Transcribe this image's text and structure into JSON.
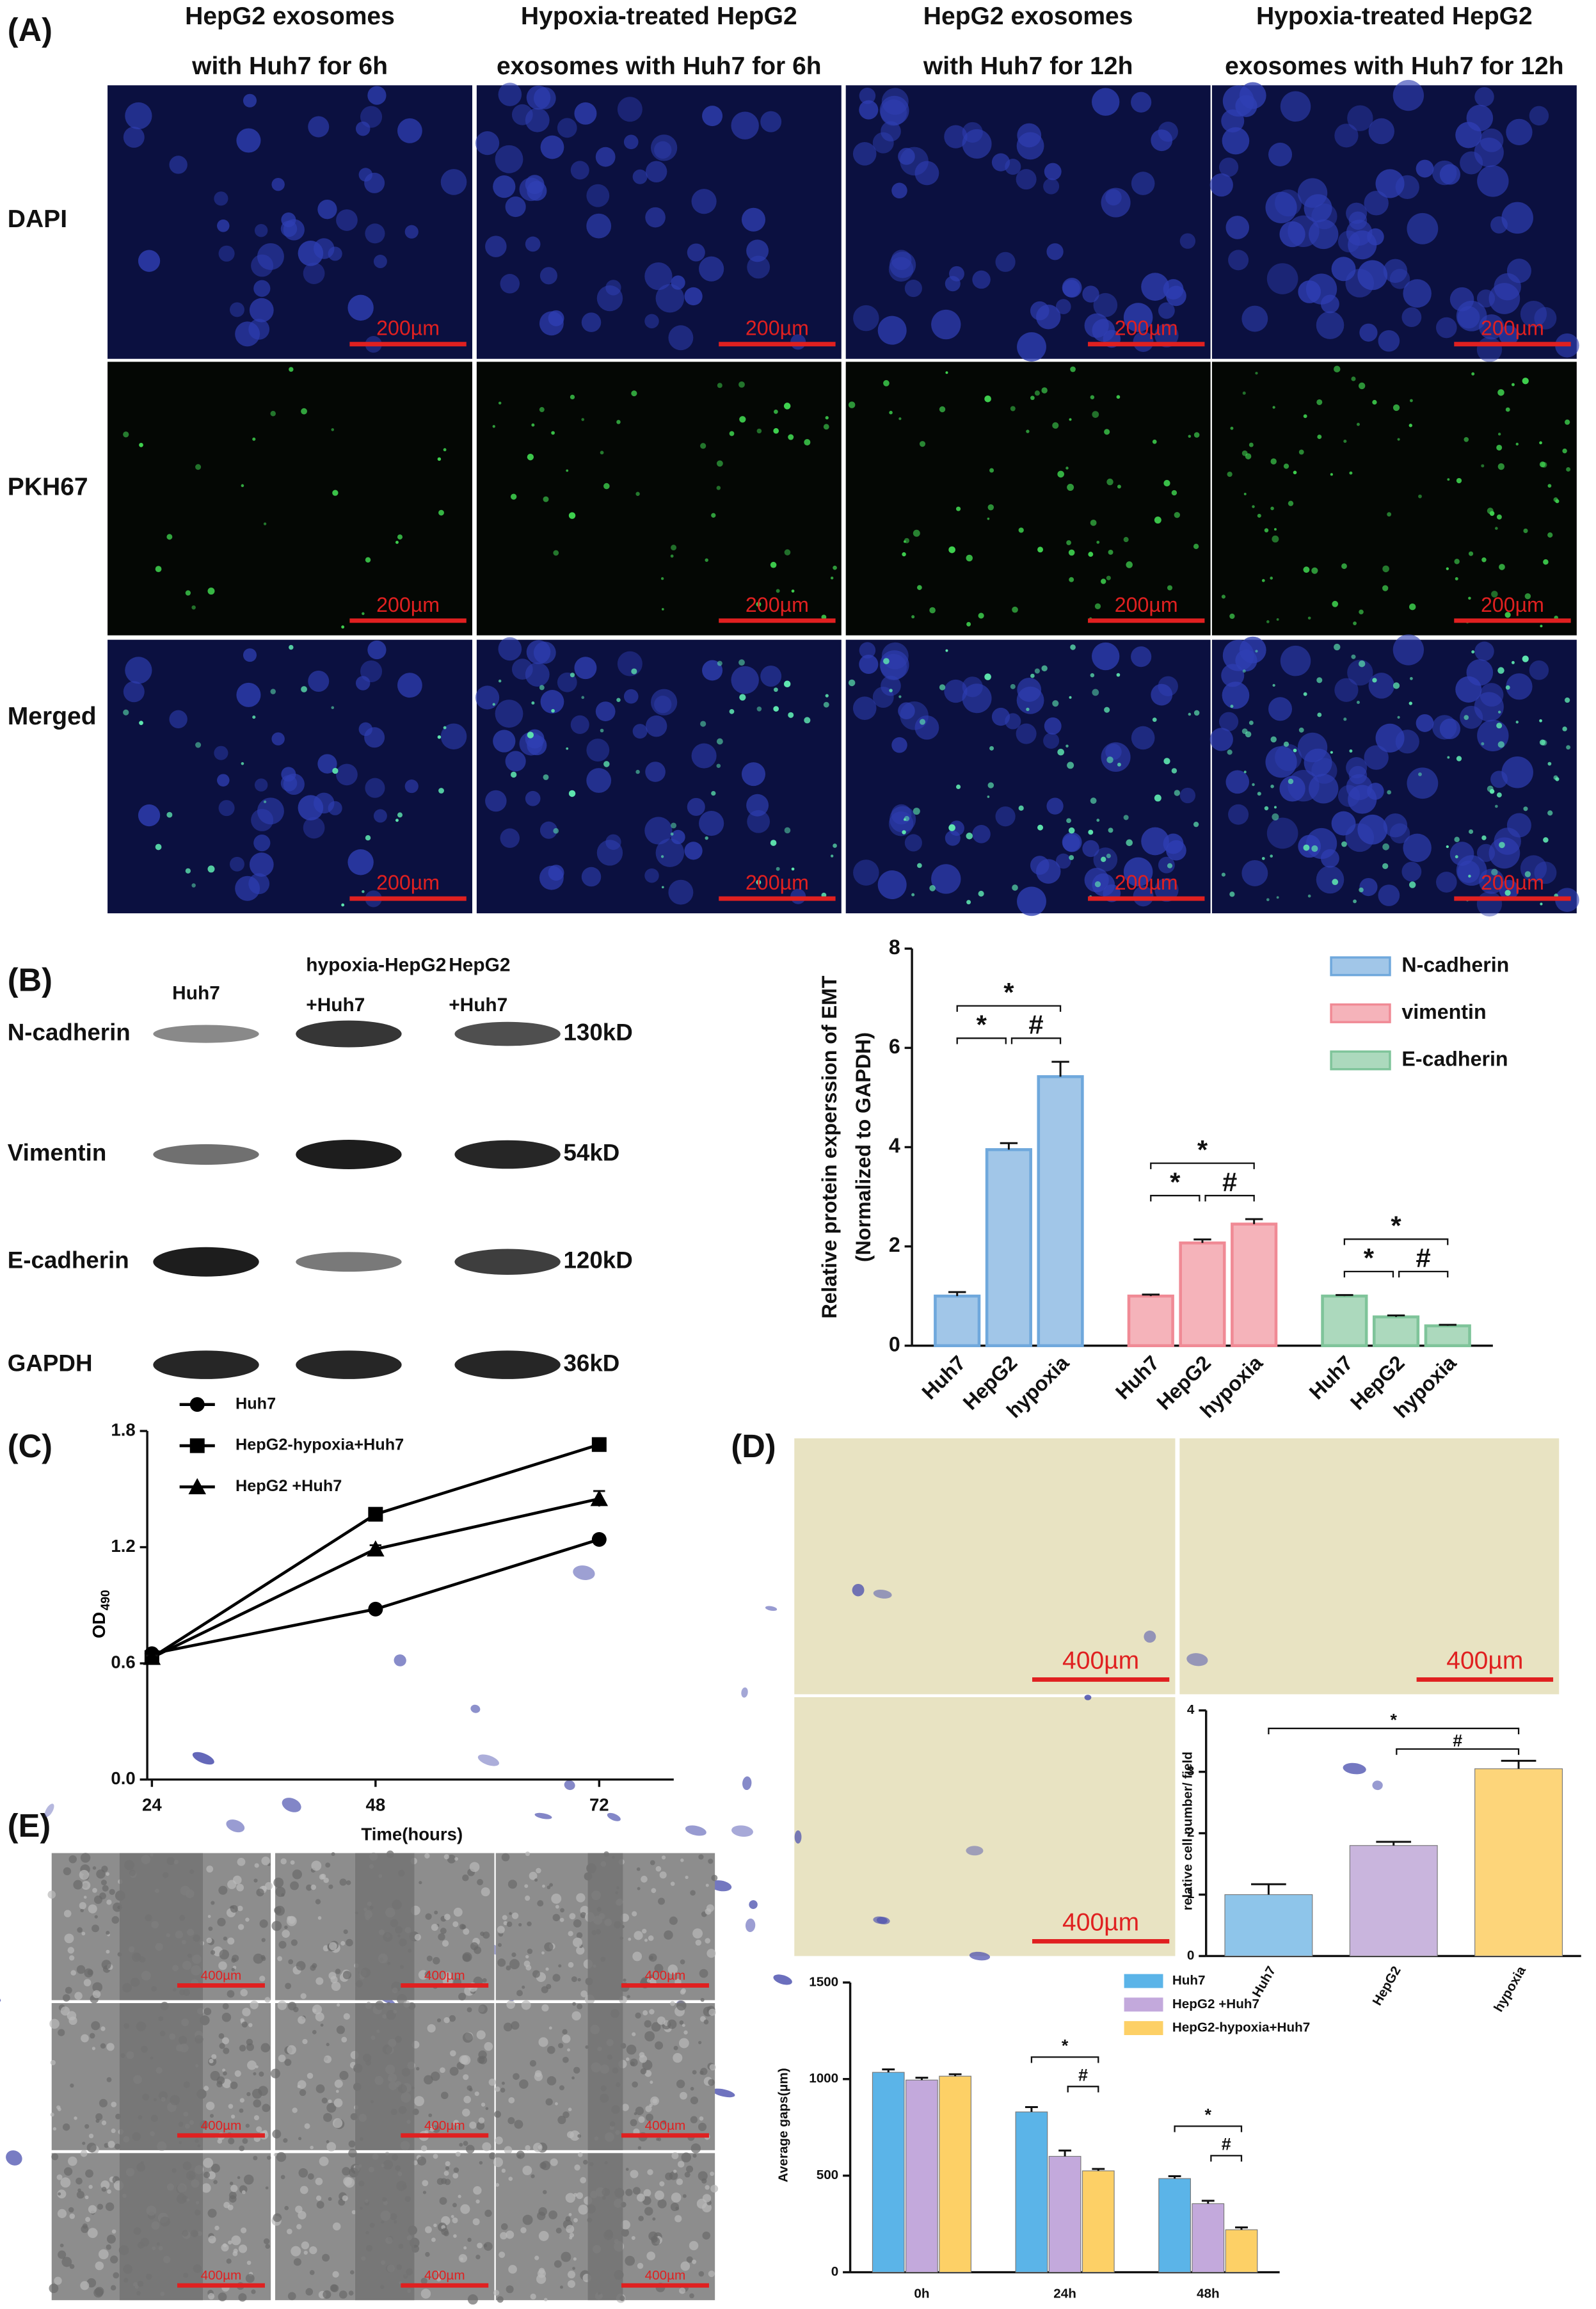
{
  "panels": {
    "A": {
      "label": "(A)",
      "columns": [
        [
          "HepG2 exosomes",
          "with Huh7 for 6h"
        ],
        [
          "Hypoxia-treated HepG2",
          "exosomes with Huh7 for 6h"
        ],
        [
          "HepG2 exosomes",
          "with Huh7 for 12h"
        ],
        [
          "Hypoxia-treated HepG2",
          "exosomes with Huh7 for 12h"
        ]
      ],
      "rows": [
        "DAPI",
        "PKH67",
        "Merged"
      ],
      "scale_bar": "200µm"
    },
    "B": {
      "label": "(B)",
      "lanes": [
        [
          "Huh7"
        ],
        [
          "hypoxia-HepG2",
          "+Huh7"
        ],
        [
          "HepG2",
          "+Huh7"
        ]
      ],
      "proteins": [
        "N-cadherin",
        "Vimentin",
        "E-cadherin",
        "GAPDH"
      ],
      "sizes": [
        "130kD",
        "54kD",
        "120kD",
        "36kD"
      ]
    },
    "C": {
      "label": "(C)"
    },
    "D": {
      "label": "(D)",
      "scale_bar": "400µm"
    },
    "E": {
      "label": "(E)",
      "scale_bar": "400µm"
    }
  },
  "chart_data": [
    {
      "type": "bar",
      "group_by": "series",
      "ylabel": [
        "Relative protein experssion of EMT",
        "(Normalized to GAPDH)"
      ],
      "categories": [
        "Huh7",
        "HepG2",
        "hypoxia"
      ],
      "series": [
        {
          "name": "N-cadherin",
          "color": "#6fa8dc",
          "values": [
            1.0,
            3.95,
            5.42
          ],
          "errors": [
            0.08,
            0.13,
            0.3
          ]
        },
        {
          "name": "vimentin",
          "color": "#f08a95",
          "values": [
            1.0,
            2.07,
            2.45
          ],
          "errors": [
            0.03,
            0.07,
            0.1
          ]
        },
        {
          "name": "E-cadherin",
          "color": "#7fc49a",
          "values": [
            1.0,
            0.58,
            0.4
          ],
          "errors": [
            0.02,
            0.03,
            0.02
          ]
        }
      ],
      "ylim": [
        0,
        8
      ],
      "yticks": [
        0,
        2,
        4,
        6,
        8
      ],
      "markers": [
        "*",
        "#"
      ],
      "legend": "upper right"
    },
    {
      "type": "line",
      "xlabel": "Time(hours)",
      "ylabel": "OD",
      "ylabel_sub": "490",
      "x": [
        24,
        48,
        72
      ],
      "xlim": [
        23.5,
        80
      ],
      "xticks": [
        24,
        48,
        72
      ],
      "ylim": [
        0,
        1.8
      ],
      "yticks": [
        {
          "value": 0,
          "label": "0.0"
        },
        0.6,
        1.2,
        1.8
      ],
      "series": [
        {
          "name": "Huh7",
          "color": "#000000",
          "marker": "circle",
          "values": [
            0.65,
            0.88,
            1.24
          ],
          "errors": [
            0.01,
            0.01,
            0.02
          ]
        },
        {
          "name": "HepG2-hypoxia+Huh7",
          "color": "#000000",
          "marker": "square",
          "values": [
            0.63,
            1.37,
            1.73
          ],
          "errors": [
            0.01,
            0.02,
            0.02
          ]
        },
        {
          "name": "HepG2 +Huh7",
          "color": "#000000",
          "marker": "triangle",
          "values": [
            0.63,
            1.19,
            1.45
          ],
          "errors": [
            0.01,
            0.02,
            0.04
          ]
        }
      ],
      "legend": "upper left"
    },
    {
      "type": "bar",
      "group_by": "category",
      "ylabel": "relative cell number/ field",
      "categories": [
        "Huh7",
        "HepG2",
        "hypoxia"
      ],
      "values": [
        1.0,
        1.8,
        3.05
      ],
      "errors": [
        0.17,
        0.06,
        0.13
      ],
      "colors": [
        "#8ec5ea",
        "#c9b5dd",
        "#fdd57a"
      ],
      "ylim": [
        0,
        4
      ],
      "yticks": [
        0,
        1,
        2,
        3,
        4
      ],
      "markers": [
        "*",
        "#"
      ]
    },
    {
      "type": "bar",
      "group_by": "category",
      "ylabel": "Average gaps(µm)",
      "categories": [
        "0h",
        "24h",
        "48h"
      ],
      "series": [
        {
          "name": "Huh7",
          "color": "#5bb4e8",
          "values": [
            1035,
            830,
            485
          ],
          "errors": [
            15,
            25,
            12
          ]
        },
        {
          "name": "HepG2 +Huh7",
          "color": "#c3a9dc",
          "values": [
            995,
            600,
            355
          ],
          "errors": [
            12,
            30,
            15
          ]
        },
        {
          "name": "HepG2-hypoxia+Huh7",
          "color": "#fdd066",
          "values": [
            1015,
            525,
            220
          ],
          "errors": [
            10,
            10,
            12
          ]
        }
      ],
      "ylim": [
        0,
        1500
      ],
      "yticks": [
        0,
        500,
        1000,
        1500
      ],
      "markers": [
        "*",
        "#"
      ],
      "legend": "upper right"
    }
  ]
}
